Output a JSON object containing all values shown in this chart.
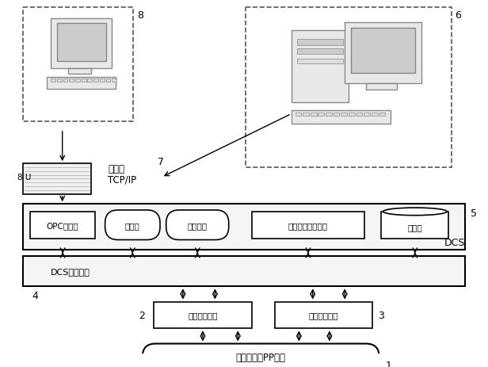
{
  "bg_color": "#ffffff",
  "border_color": "#000000",
  "box_color": "#ffffff",
  "text_color": "#000000",
  "label8": "8",
  "label6": "6",
  "label7": "7",
  "label5": "5",
  "label4": "4",
  "label2": "2",
  "label3": "3",
  "label1": "1",
  "label8U": "8 U",
  "router_line1": "路由器",
  "router_line2": "TCP/IP",
  "dcs_label": "DCS",
  "dcs_network": "DCS通信网络",
  "box_opc": "OPC服务器",
  "box_op": "操作站",
  "box_eng": "工程师站",
  "box_quality": "质量指标显示画面",
  "box_db": "数据库",
  "box_field_proc": "现场过程仪表",
  "box_field_anal": "现场分析仪表",
  "box_process": "气相流化床PP过程"
}
